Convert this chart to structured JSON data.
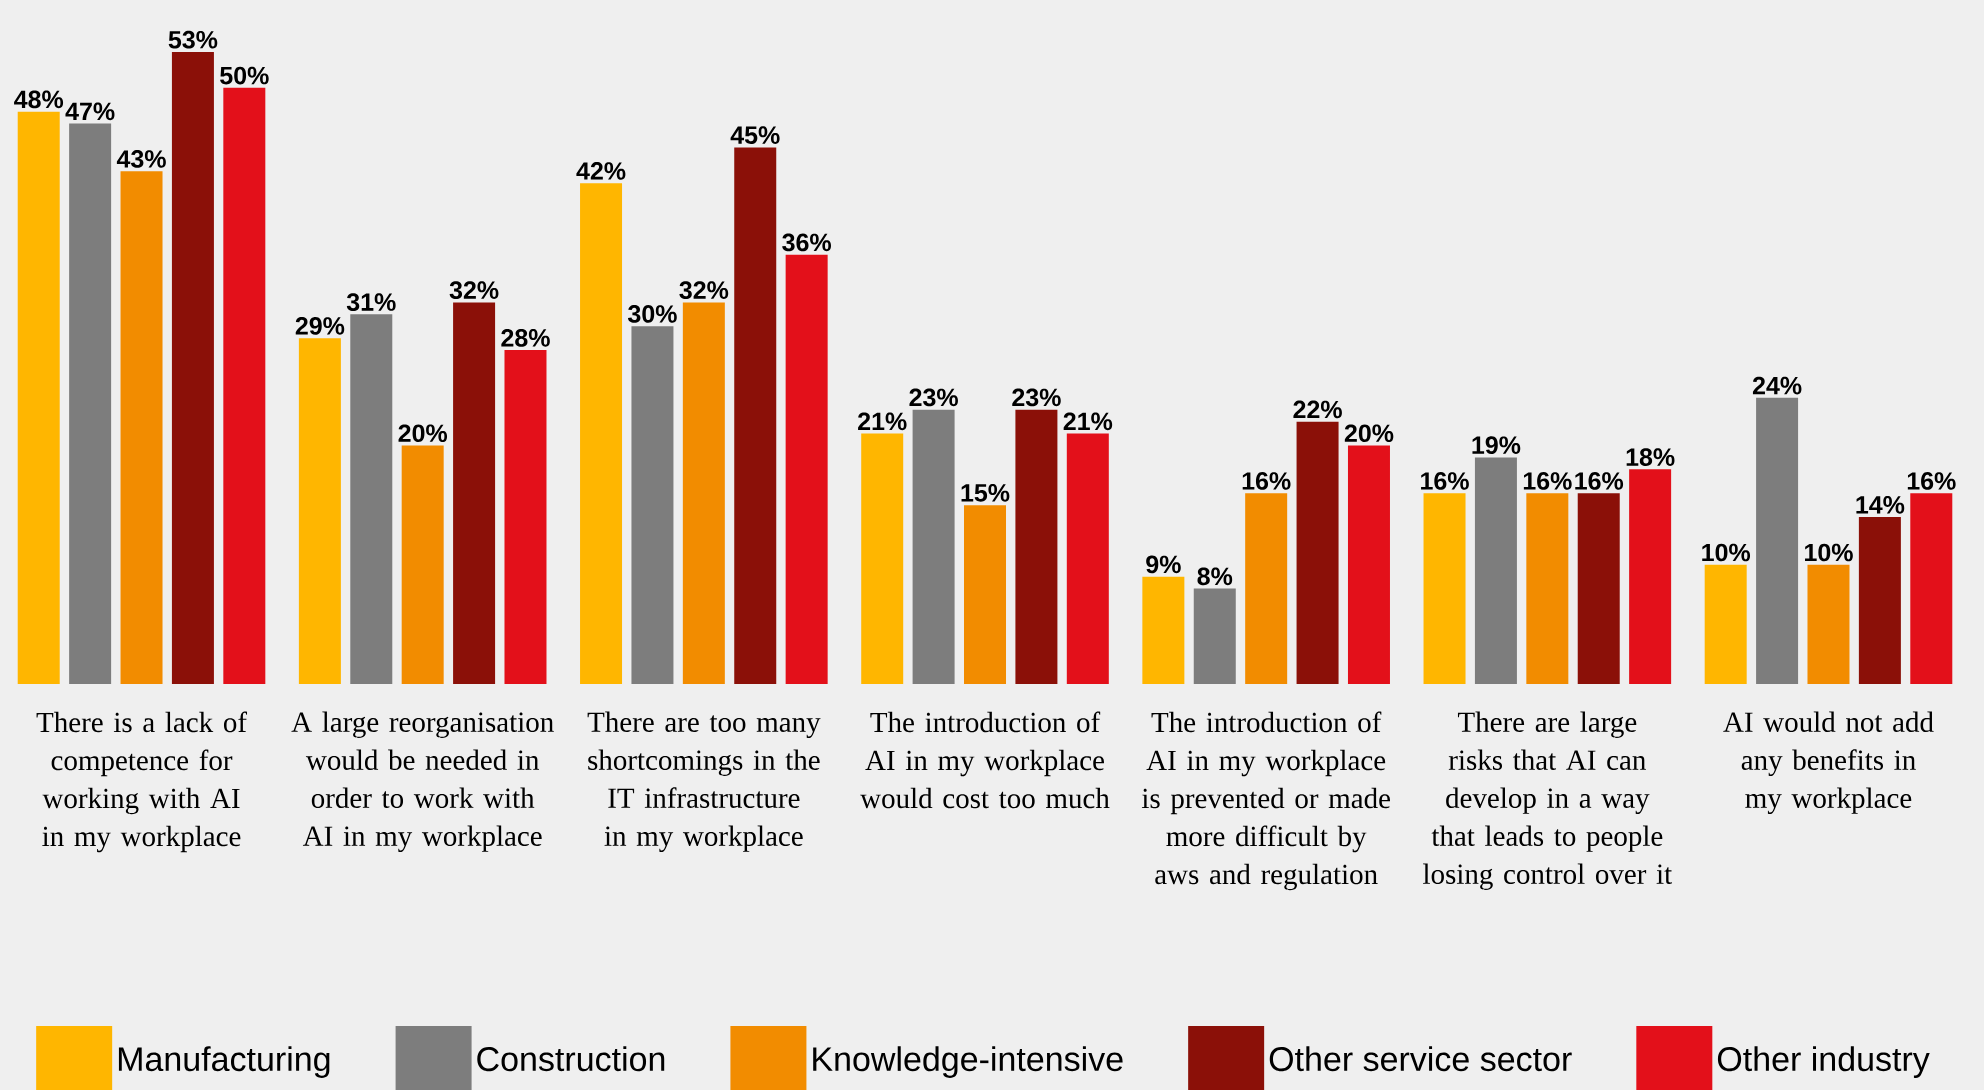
{
  "chart_data": {
    "type": "bar",
    "categories": [
      "There is a lack of competence for working with AI in my workplace",
      "A large reorganisation would be needed in order to work with AI in my workplace",
      "There are too many shortcomings in the IT infrastructure in my workplace",
      "The introduction of AI in my workplace would cost too much",
      "The introduction of AI in my workplace is prevented or made more difficult by aws and regulation",
      "There are large risks that AI can develop in a way that leads to people losing control over it",
      "AI would not add any benefits in my workplace"
    ],
    "series": [
      {
        "name": "Manufacturing",
        "color": "#ffb600",
        "values": [
          48,
          29,
          42,
          21,
          9,
          16,
          10
        ],
        "value_labels": [
          "48%",
          "29%",
          "42%",
          "21%",
          "9%",
          "16%",
          "10%"
        ]
      },
      {
        "name": "Construction",
        "color": "#7d7d7d",
        "values": [
          47,
          31,
          30,
          23,
          8,
          19,
          24
        ],
        "value_labels": [
          "47%",
          "31%",
          "30%",
          "23%",
          "8%",
          "19%",
          "24%"
        ]
      },
      {
        "name": "Knowledge-intensive",
        "color": "#f28c00",
        "values": [
          43,
          20,
          32,
          15,
          16,
          16,
          10
        ],
        "value_labels": [
          "43%",
          "20%",
          "32%",
          "15%",
          "16%",
          "16%",
          "10%"
        ]
      },
      {
        "name": "Other service sector",
        "color": "#8b1008",
        "values": [
          53,
          32,
          45,
          23,
          22,
          16,
          14
        ],
        "value_labels": [
          "53%",
          "32%",
          "45%",
          "23%",
          "22%",
          "16%",
          "14%"
        ]
      },
      {
        "name": "Other industry",
        "color": "#e3101a",
        "values": [
          50,
          28,
          36,
          21,
          20,
          18,
          16
        ],
        "value_labels": [
          "50%",
          "28%",
          "36%",
          "21%",
          "20%",
          "18%",
          "16%"
        ]
      }
    ],
    "legend": "bottom"
  }
}
